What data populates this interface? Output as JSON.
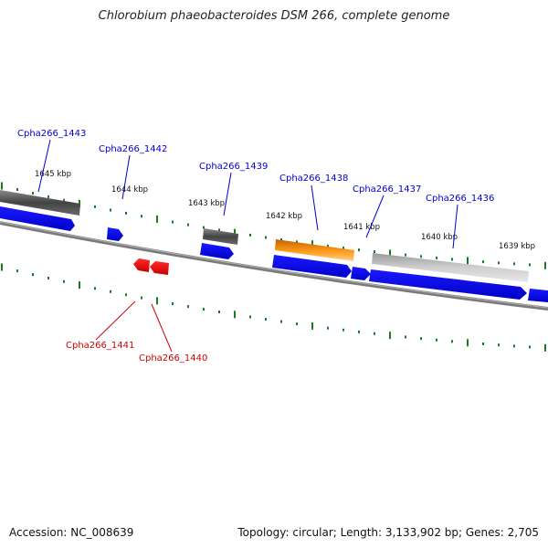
{
  "title": "Chlorobium phaeobacteroides DSM 266, complete genome",
  "footer": {
    "accession": "Accession: NC_008639",
    "info": "Topology: circular; Length: 3,133,902 bp; Genes: 2,705"
  },
  "ticks": [
    {
      "label": "1645 kbp"
    },
    {
      "label": "1644 kbp"
    },
    {
      "label": "1643 kbp"
    },
    {
      "label": "1642 kbp"
    },
    {
      "label": "1641 kbp"
    },
    {
      "label": "1640 kbp"
    },
    {
      "label": "1639 kbp"
    }
  ],
  "gene_labels": [
    {
      "name": "Cpha266_1443",
      "color": "#0000cc"
    },
    {
      "name": "Cpha266_1442",
      "color": "#0000cc"
    },
    {
      "name": "Cpha266_1439",
      "color": "#0000cc"
    },
    {
      "name": "Cpha266_1438",
      "color": "#0000cc"
    },
    {
      "name": "Cpha266_1437",
      "color": "#0000cc"
    },
    {
      "name": "Cpha266_1436",
      "color": "#0000cc"
    },
    {
      "name": "Cpha266_1441",
      "color": "#cc0000"
    },
    {
      "name": "Cpha266_1440",
      "color": "#cc0000"
    }
  ],
  "colors": {
    "backbone": "#7a7a7a",
    "tick": "#1e7a1e",
    "cds_forward": "#0000ee",
    "cds_reverse": "#ee0000",
    "feature_dark": "#555555",
    "feature_orange": "#e07a00",
    "feature_light": "#b8b8b8"
  }
}
